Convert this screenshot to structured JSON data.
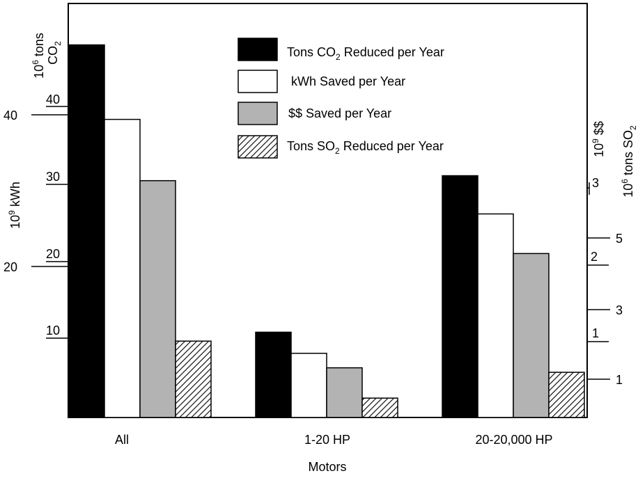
{
  "chart_data": {
    "type": "bar",
    "categories": [
      "All",
      "1-20 HP",
      "20-20,000 HP"
    ],
    "xlabel": "Motors",
    "series": [
      {
        "name_parts": [
          "Tons CO",
          "2",
          " Reduced per Year"
        ],
        "color": "#000000",
        "pattern": "solid",
        "unit": "10^6 tons CO2",
        "values": [
          45,
          10.3,
          29.2
        ]
      },
      {
        "name_parts": [
          "kWh Saved per Year",
          "",
          ""
        ],
        "color": "#ffffff",
        "pattern": "outline",
        "unit": "10^9 kWh",
        "values": [
          43.2,
          9.3,
          29.5
        ]
      },
      {
        "name_parts": [
          "$$ Saved per Year",
          "",
          ""
        ],
        "color": "#b3b3b3",
        "pattern": "solid",
        "unit": "10^9 $$",
        "values": [
          2.86,
          0.6,
          1.98
        ]
      },
      {
        "name_parts": [
          "Tons SO",
          "2",
          " Reduced per Year"
        ],
        "color": "#ffffff",
        "pattern": "hatch",
        "unit": "10^6 tons SO2",
        "values": [
          1.62,
          0.56,
          1.04
        ]
      }
    ],
    "axes": {
      "co2": {
        "title_parts": [
          "10",
          "6",
          " tons",
          "CO",
          "2"
        ],
        "ticks": [
          "10",
          "20",
          "30",
          "40"
        ],
        "ylim": [
          0,
          50
        ]
      },
      "kwh": {
        "title_parts": [
          "10",
          "9",
          " kWh"
        ],
        "ticks": [
          "20",
          "40"
        ],
        "ylim": [
          0,
          60
        ]
      },
      "dollars": {
        "title_parts": [
          "10",
          "9",
          " $$"
        ],
        "ticks": [
          "1",
          "2",
          "3"
        ],
        "ylim": [
          0,
          5
        ]
      },
      "so2": {
        "title_parts": [
          "10",
          "6",
          " tons SO",
          "2"
        ],
        "ticks": [
          "1",
          "3",
          "5"
        ],
        "ylim": [
          0.2,
          7.9
        ]
      }
    }
  }
}
